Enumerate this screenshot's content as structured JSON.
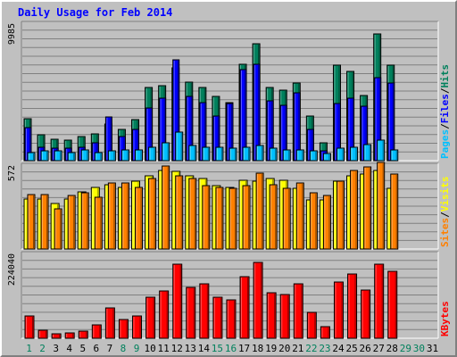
{
  "chart_data": {
    "type": "bar",
    "title": "Daily Usage for Feb 2014",
    "categories": [
      "1",
      "2",
      "3",
      "4",
      "5",
      "6",
      "7",
      "8",
      "9",
      "10",
      "11",
      "12",
      "13",
      "14",
      "15",
      "16",
      "17",
      "18",
      "19",
      "20",
      "21",
      "22",
      "23",
      "24",
      "25",
      "26",
      "27",
      "28",
      "29",
      "30",
      "31"
    ],
    "weekend_days": [
      "1",
      "2",
      "8",
      "9",
      "15",
      "16",
      "22",
      "23",
      "29",
      "30"
    ],
    "colors": {
      "hits": "#00805c",
      "files": "#0000ff",
      "pages": "#00c0ff",
      "visits": "#ffff00",
      "sites": "#ff8000",
      "kbytes": "#ff0000",
      "title": "#0000ff",
      "weekday_label": "#000000",
      "weekend_label": "#00805c"
    },
    "panels": [
      {
        "id": "hits_files_pages",
        "ymax_label": "9985",
        "ylim": [
          0,
          9985
        ],
        "series": [
          {
            "name": "Hits",
            "values": [
              3100,
              1900,
              1600,
              1500,
              1800,
              2000,
              2700,
              2300,
              3000,
              5400,
              5500,
              6800,
              5800,
              5400,
              4700,
              4300,
              7100,
              8600,
              5400,
              5200,
              5700,
              3300,
              1300,
              7000,
              6600,
              4800,
              9300,
              7000,
              0,
              0,
              0
            ]
          },
          {
            "name": "Files",
            "values": [
              2400,
              1000,
              900,
              900,
              1000,
              1300,
              3200,
              1800,
              2300,
              3900,
              4600,
              7400,
              4700,
              4300,
              3300,
              4200,
              6700,
              7100,
              4400,
              4100,
              5000,
              2300,
              700,
              4200,
              4600,
              4000,
              6100,
              5700,
              0,
              0,
              0
            ]
          },
          {
            "name": "Pages",
            "values": [
              600,
              700,
              700,
              600,
              800,
              600,
              700,
              800,
              800,
              1000,
              1300,
              2100,
              1100,
              1000,
              1000,
              900,
              1000,
              1100,
              900,
              800,
              800,
              700,
              500,
              900,
              1000,
              1200,
              1500,
              800,
              0,
              0,
              0
            ]
          }
        ],
        "right_labels": [
          {
            "text": "Pages",
            "color": "#00c0ff"
          },
          {
            "text": "/",
            "color": "#000000"
          },
          {
            "text": "Files",
            "color": "#0000ff"
          },
          {
            "text": "/",
            "color": "#000000"
          },
          {
            "text": "Hits",
            "color": "#00805c"
          }
        ]
      },
      {
        "id": "sites_visits",
        "ymax_label": "572",
        "ylim": [
          0,
          572
        ],
        "series": [
          {
            "name": "Visits",
            "values": [
              350,
              350,
              320,
              350,
              400,
              430,
              450,
              430,
              470,
              510,
              550,
              540,
              510,
              490,
              440,
              430,
              480,
              470,
              490,
              480,
              420,
              340,
              340,
              470,
              510,
              520,
              550,
              420,
              0,
              0,
              0
            ]
          },
          {
            "name": "Sites",
            "values": [
              380,
              380,
              280,
              370,
              390,
              360,
              460,
              460,
              430,
              490,
              580,
              510,
              490,
              440,
              430,
              420,
              440,
              530,
              450,
              420,
              460,
              390,
              370,
              470,
              550,
              570,
              600,
              520,
              0,
              0,
              0
            ]
          }
        ],
        "right_labels": [
          {
            "text": "Sites",
            "color": "#ff8000"
          },
          {
            "text": "/",
            "color": "#000000"
          },
          {
            "text": "Visits",
            "color": "#ffff00"
          }
        ]
      },
      {
        "id": "kbytes",
        "ymax_label": "224040",
        "ylim": [
          0,
          224040
        ],
        "series": [
          {
            "name": "KBytes",
            "values": [
              60000,
              22000,
              12000,
              14000,
              19000,
              35000,
              83000,
              50000,
              60000,
              110000,
              127000,
              199000,
              138000,
              146000,
              112000,
              103000,
              167000,
              204000,
              123000,
              117000,
              148000,
              70000,
              32000,
              151000,
              173000,
              129000,
              200000,
              180000,
              0,
              0,
              0
            ]
          }
        ],
        "right_labels": [
          {
            "text": "KBytes",
            "color": "#ff0000"
          }
        ]
      }
    ]
  }
}
